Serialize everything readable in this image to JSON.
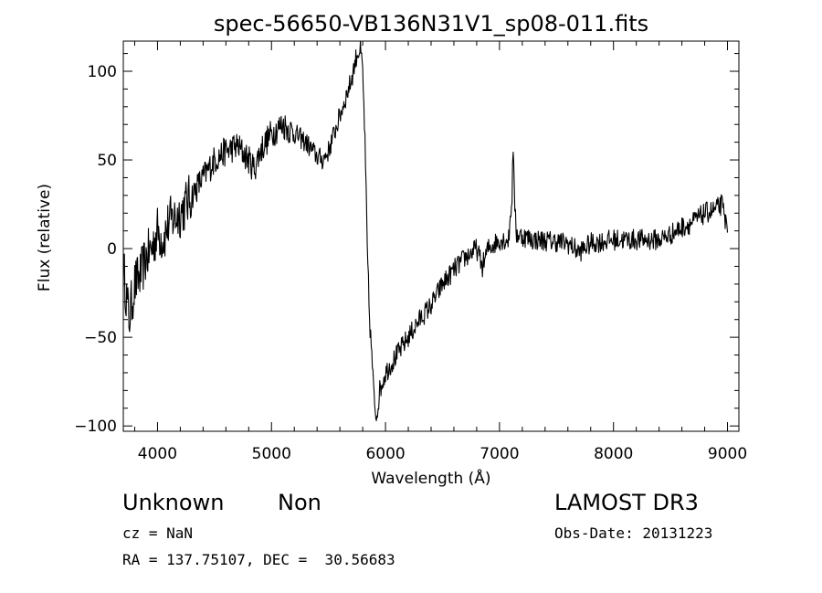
{
  "chart_data": {
    "type": "line",
    "title": "spec-56650-VB136N31V1_sp08-011.fits",
    "xlabel": "Wavelength (Å)",
    "ylabel": "Flux (relative)",
    "xlim": [
      3700,
      9100
    ],
    "ylim": [
      -103,
      117
    ],
    "xticks": [
      4000,
      5000,
      6000,
      7000,
      8000,
      9000
    ],
    "yticks": [
      -100,
      -50,
      0,
      50,
      100
    ],
    "grid": false,
    "noise_amplitude": 6,
    "series": [
      {
        "name": "flux",
        "points": [
          [
            3700,
            -10
          ],
          [
            3750,
            -40
          ],
          [
            3800,
            -20
          ],
          [
            3850,
            -15
          ],
          [
            3900,
            -5
          ],
          [
            3950,
            0
          ],
          [
            4000,
            10
          ],
          [
            4050,
            5
          ],
          [
            4100,
            15
          ],
          [
            4200,
            20
          ],
          [
            4300,
            30
          ],
          [
            4400,
            40
          ],
          [
            4500,
            50
          ],
          [
            4600,
            55
          ],
          [
            4700,
            58
          ],
          [
            4800,
            50
          ],
          [
            4850,
            45
          ],
          [
            4900,
            55
          ],
          [
            5000,
            65
          ],
          [
            5100,
            70
          ],
          [
            5200,
            65
          ],
          [
            5300,
            60
          ],
          [
            5400,
            52
          ],
          [
            5450,
            50
          ],
          [
            5500,
            55
          ],
          [
            5600,
            75
          ],
          [
            5700,
            95
          ],
          [
            5750,
            110
          ],
          [
            5780,
            112
          ],
          [
            5800,
            100
          ],
          [
            5820,
            60
          ],
          [
            5840,
            0
          ],
          [
            5860,
            -40
          ],
          [
            5880,
            -60
          ],
          [
            5900,
            -85
          ],
          [
            5920,
            -95
          ],
          [
            5950,
            -80
          ],
          [
            6000,
            -70
          ],
          [
            6100,
            -60
          ],
          [
            6200,
            -50
          ],
          [
            6300,
            -40
          ],
          [
            6400,
            -32
          ],
          [
            6500,
            -20
          ],
          [
            6600,
            -12
          ],
          [
            6700,
            -5
          ],
          [
            6800,
            0
          ],
          [
            6850,
            -10
          ],
          [
            6900,
            0
          ],
          [
            7000,
            5
          ],
          [
            7080,
            5
          ],
          [
            7110,
            30
          ],
          [
            7120,
            58
          ],
          [
            7130,
            30
          ],
          [
            7150,
            8
          ],
          [
            7300,
            5
          ],
          [
            7500,
            4
          ],
          [
            7600,
            3
          ],
          [
            7700,
            -2
          ],
          [
            7800,
            3
          ],
          [
            8000,
            5
          ],
          [
            8200,
            5
          ],
          [
            8400,
            5
          ],
          [
            8500,
            8
          ],
          [
            8600,
            12
          ],
          [
            8700,
            15
          ],
          [
            8800,
            20
          ],
          [
            8900,
            22
          ],
          [
            8950,
            25
          ],
          [
            9000,
            10
          ]
        ]
      }
    ]
  },
  "info": {
    "object_class": "Unknown",
    "subclass": "Non",
    "cz_line": "cz = NaN",
    "radec_line": "RA = 137.75107, DEC =  30.56683",
    "survey": "LAMOST DR3",
    "obs_date_line": "Obs-Date: 20131223"
  }
}
